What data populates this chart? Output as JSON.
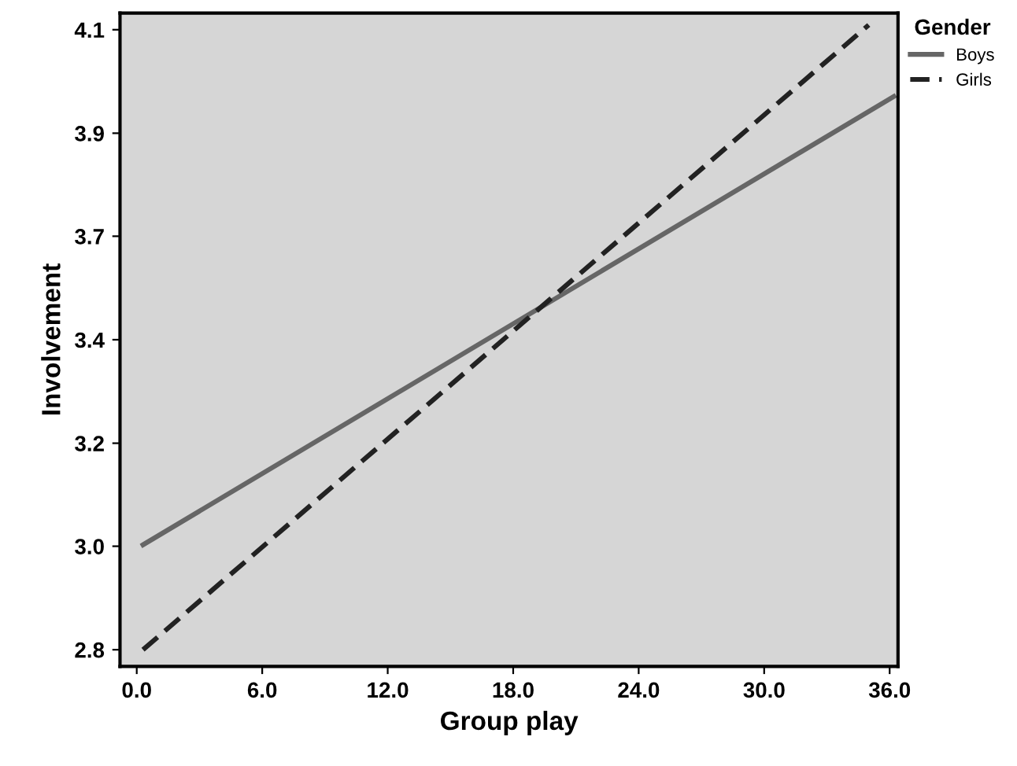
{
  "chart_data": {
    "type": "line",
    "xlabel": "Group play",
    "ylabel": "Involvement",
    "legend_title": "Gender",
    "legend": "top right",
    "xlim": [
      -0.8,
      36.4
    ],
    "ylim": [
      2.765,
      4.135
    ],
    "xticks": [
      {
        "value": 0,
        "label": "0.0"
      },
      {
        "value": 6,
        "label": "6.0"
      },
      {
        "value": 12,
        "label": "12.0"
      },
      {
        "value": 18,
        "label": "18.0"
      },
      {
        "value": 24,
        "label": "24.0"
      },
      {
        "value": 30,
        "label": "30.0"
      },
      {
        "value": 36,
        "label": "36.0"
      }
    ],
    "yticks": [
      {
        "value": 2.8,
        "label": "2.8"
      },
      {
        "value": 3.017,
        "label": "3.0"
      },
      {
        "value": 3.233,
        "label": "3.2"
      },
      {
        "value": 3.45,
        "label": "3.4"
      },
      {
        "value": 3.667,
        "label": "3.7"
      },
      {
        "value": 3.883,
        "label": "3.9"
      },
      {
        "value": 4.1,
        "label": "4.1"
      }
    ],
    "grid": false,
    "series": [
      {
        "name": "Boys",
        "color": "#666666",
        "line_style": "solid",
        "x": [
          0.3,
          36.2
        ],
        "values": [
          3.02,
          3.96
        ]
      },
      {
        "name": "Girls",
        "color": "#222222",
        "line_style": "dashed",
        "x": [
          0.3,
          35.0
        ],
        "values": [
          2.8,
          4.11
        ]
      }
    ]
  }
}
